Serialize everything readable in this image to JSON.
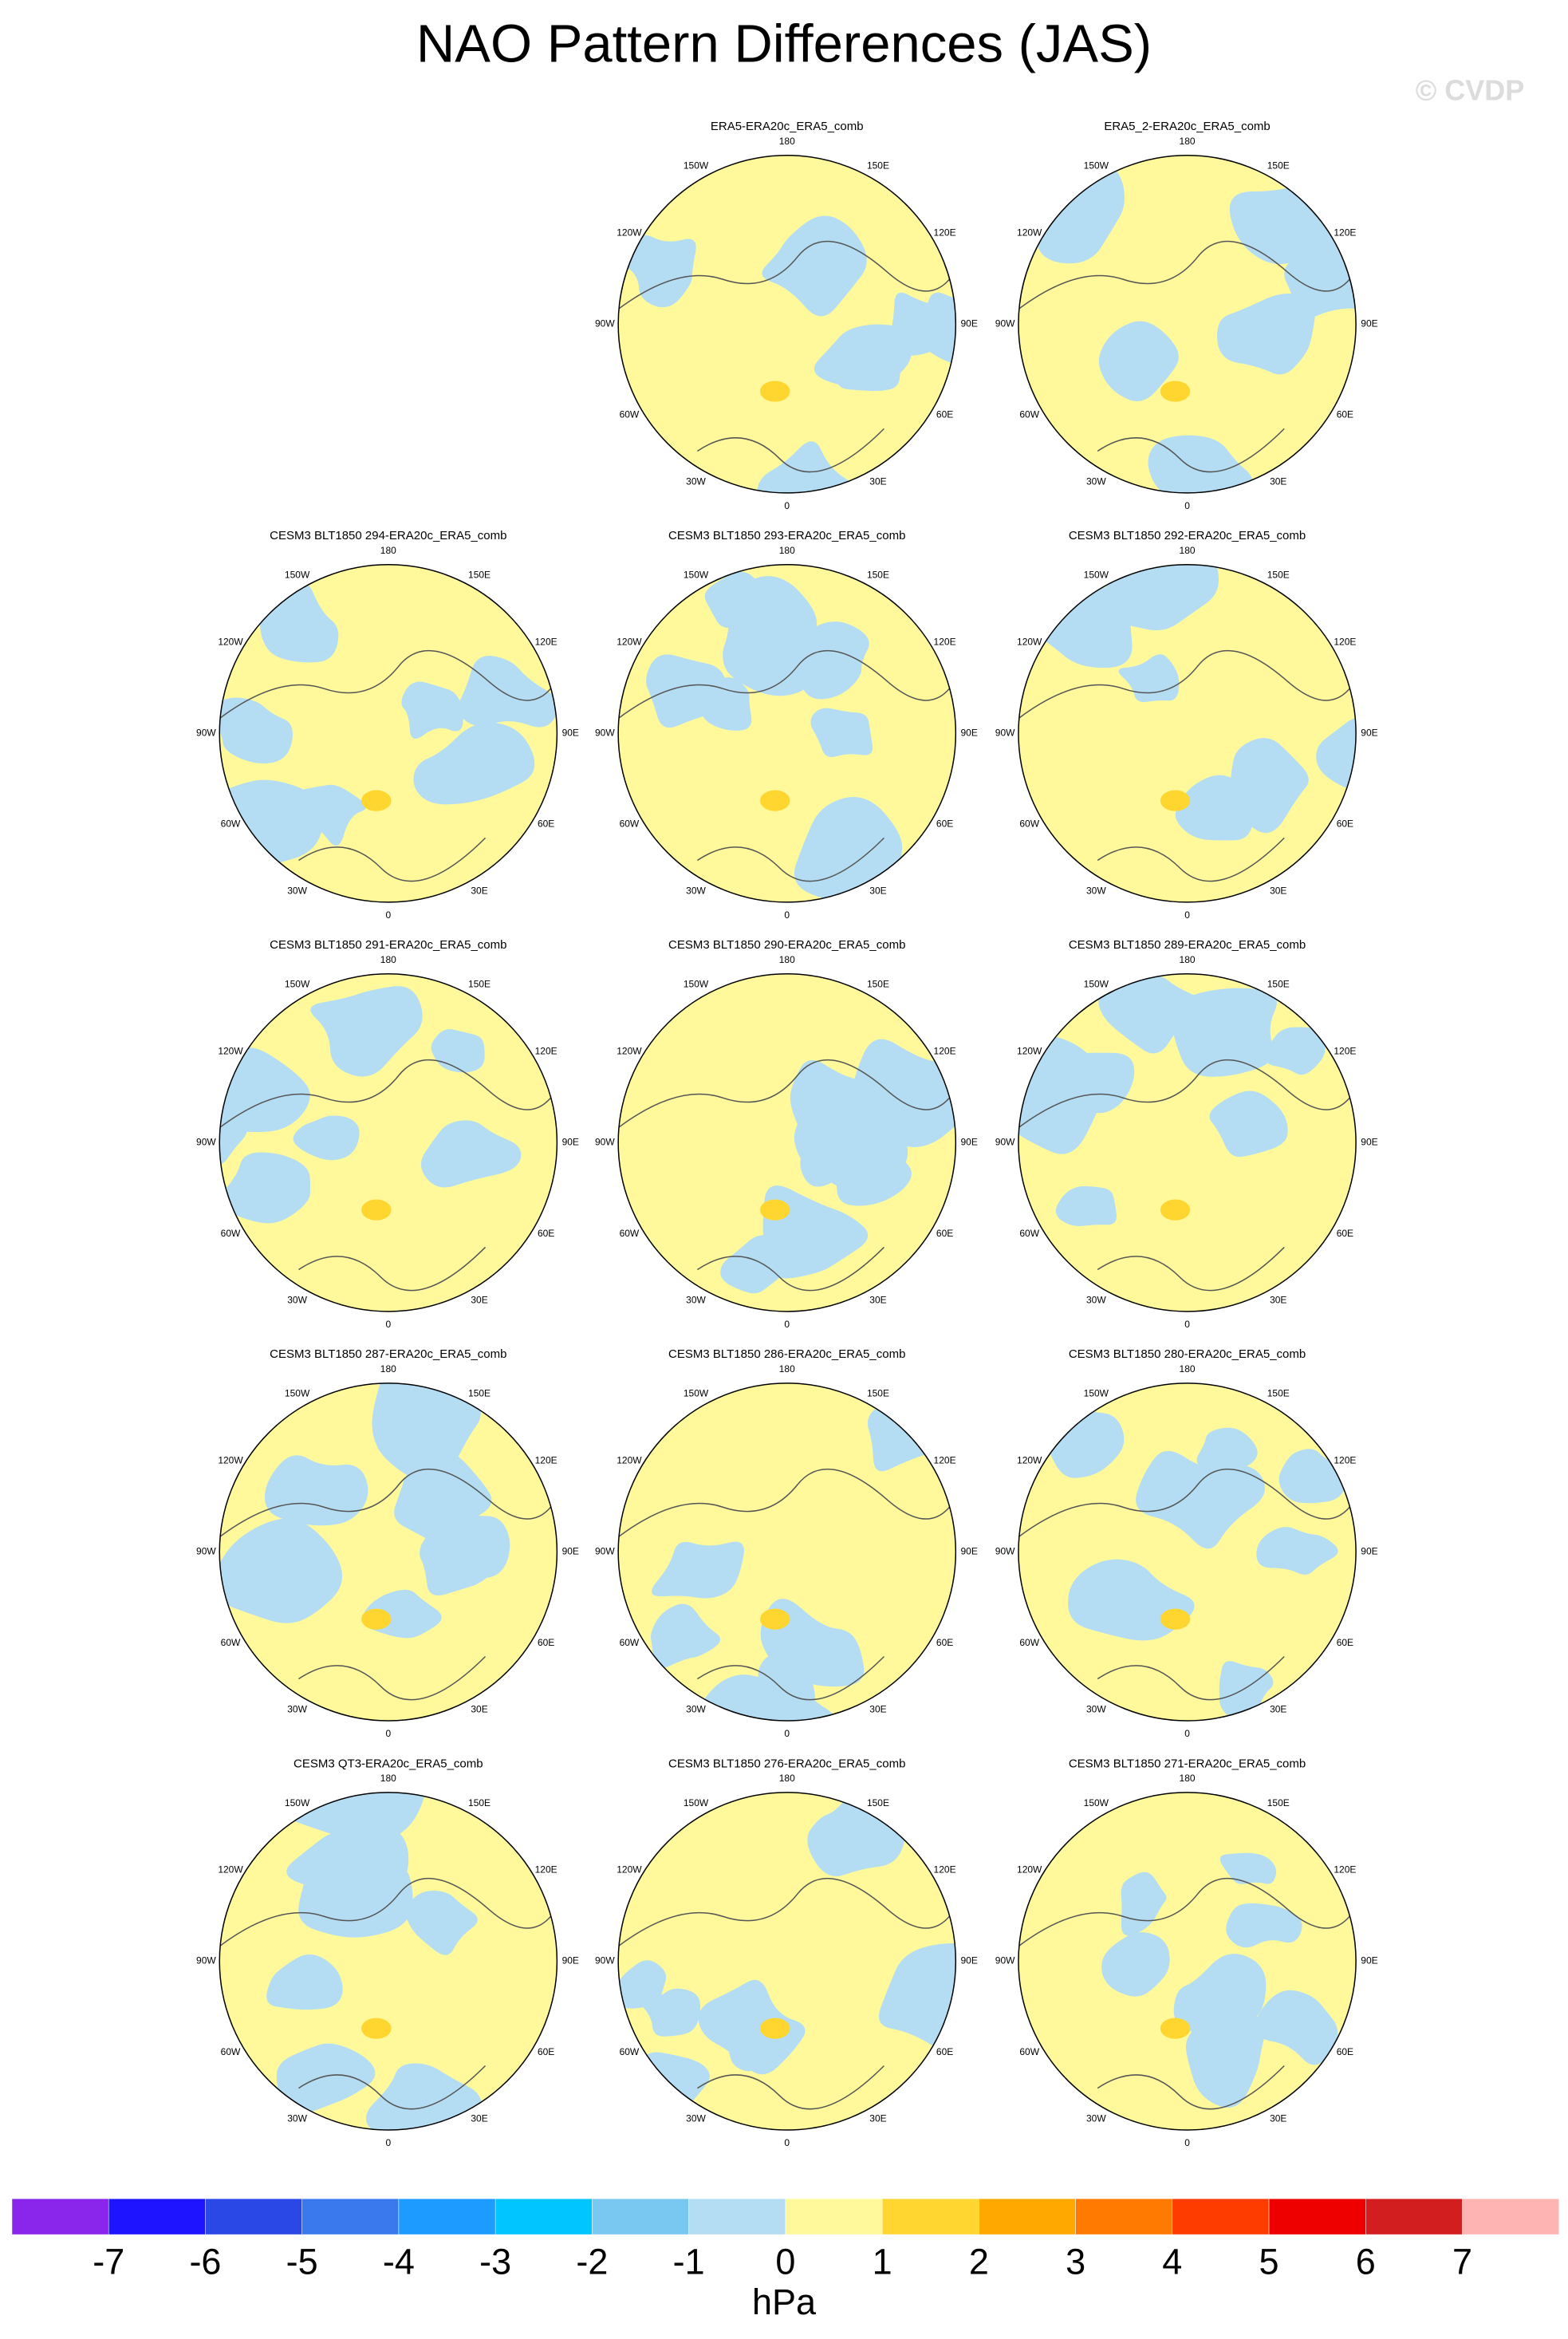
{
  "title": "NAO Pattern Differences (JAS)",
  "watermark": "© CVDP",
  "longitude_labels": [
    "180",
    "150E",
    "120E",
    "90E",
    "60E",
    "30E",
    "0",
    "30W",
    "60W",
    "90W",
    "120W",
    "150W"
  ],
  "panels": [
    {
      "title": "ERA5-ERA20c_ERA5_comb"
    },
    {
      "title": "ERA5_2-ERA20c_ERA5_comb"
    },
    {
      "title": "CESM3 BLT1850 294-ERA20c_ERA5_comb"
    },
    {
      "title": "CESM3 BLT1850 293-ERA20c_ERA5_comb"
    },
    {
      "title": "CESM3 BLT1850 292-ERA20c_ERA5_comb"
    },
    {
      "title": "CESM3 BLT1850 291-ERA20c_ERA5_comb"
    },
    {
      "title": "CESM3 BLT1850 290-ERA20c_ERA5_comb"
    },
    {
      "title": "CESM3 BLT1850 289-ERA20c_ERA5_comb"
    },
    {
      "title": "CESM3 BLT1850 287-ERA20c_ERA5_comb"
    },
    {
      "title": "CESM3 BLT1850 286-ERA20c_ERA5_comb"
    },
    {
      "title": "CESM3 BLT1850 280-ERA20c_ERA5_comb"
    },
    {
      "title": "CESM3 QT3-ERA20c_ERA5_comb"
    },
    {
      "title": "CESM3 BLT1850 276-ERA20c_ERA5_comb"
    },
    {
      "title": "CESM3 BLT1850 271-ERA20c_ERA5_comb"
    }
  ],
  "colorbar": {
    "colors": [
      "#8a26eb",
      "#1e14ff",
      "#2a48e6",
      "#3a78ee",
      "#1e9bff",
      "#00c5ff",
      "#78c8f2",
      "#b4ddf3",
      "#fff99b",
      "#ffd530",
      "#ffa800",
      "#ff7a00",
      "#ff3c00",
      "#ee0000",
      "#d21e1e",
      "#ffb4b4"
    ],
    "labels": [
      -7,
      -6,
      -5,
      -4,
      -3,
      -2,
      -1,
      0,
      1,
      2,
      3,
      4,
      5,
      6,
      7
    ],
    "unit": "hPa"
  }
}
